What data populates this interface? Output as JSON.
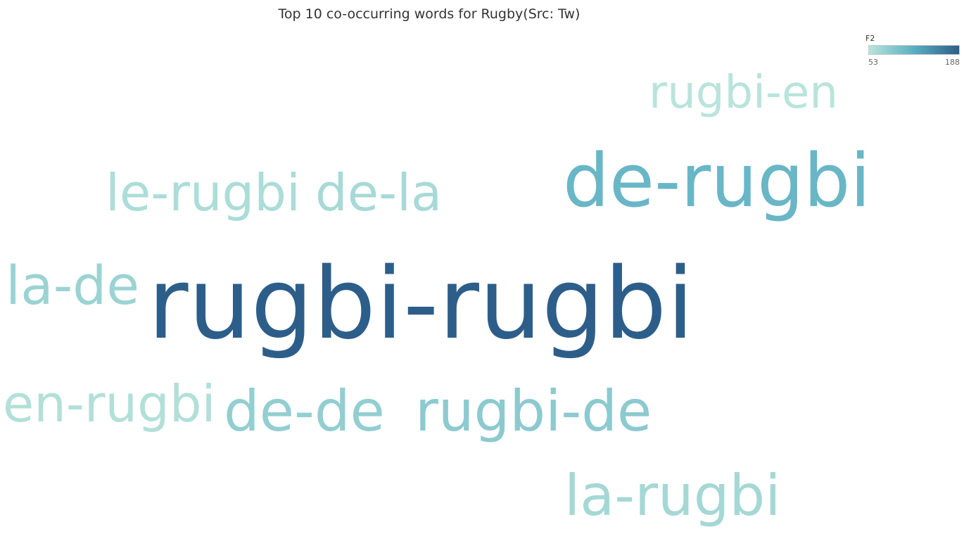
{
  "chart_data": {
    "type": "wordcloud",
    "title": "Top 10 co-occurring words for Rugby(Src: Tw)",
    "color_measure": "F2",
    "color_range": [
      53,
      188
    ],
    "color_scale": [
      "#b9e4db",
      "#5aaec2",
      "#2d5e8a"
    ],
    "words": [
      {
        "text": "rugbi-rugbi",
        "value": 188
      },
      {
        "text": "de-rugbi",
        "value": 110
      },
      {
        "text": "rugbi-de",
        "value": 85
      },
      {
        "text": "de-de",
        "value": 80
      },
      {
        "text": "la-de",
        "value": 74
      },
      {
        "text": "la-rugbi",
        "value": 68
      },
      {
        "text": "de-la",
        "value": 66
      },
      {
        "text": "le-rugbi",
        "value": 62
      },
      {
        "text": "en-rugbi",
        "value": 58
      },
      {
        "text": "rugbi-en",
        "value": 53
      }
    ]
  },
  "legend": {
    "title": "F2",
    "min_label": "53",
    "max_label": "188"
  }
}
